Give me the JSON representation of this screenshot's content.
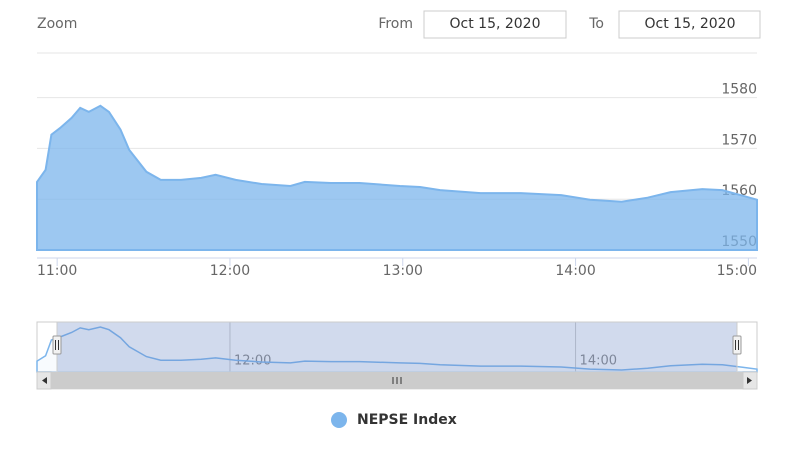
{
  "chart_data": {
    "type": "area",
    "zoom_label": "Zoom",
    "from_label": "From",
    "from_date": "Oct 15, 2020",
    "to_label": "To",
    "to_date": "Oct 15, 2020",
    "x": [
      "10:53",
      "10:56",
      "10:58",
      "11:01",
      "11:05",
      "11:08",
      "11:11",
      "11:15",
      "11:18",
      "11:22",
      "11:25",
      "11:31",
      "11:36",
      "11:43",
      "11:50",
      "11:55",
      "12:02",
      "12:11",
      "12:21",
      "12:26",
      "12:35",
      "12:45",
      "12:59",
      "13:06",
      "13:13",
      "13:27",
      "13:41",
      "13:55",
      "14:05",
      "14:16",
      "14:25",
      "14:33",
      "14:44",
      "14:51",
      "14:58",
      "15:03"
    ],
    "series": [
      {
        "name": "NEPSE Index",
        "color": "#7cb5ec",
        "values": [
          1563.4,
          1565.8,
          1572.7,
          1574,
          1576,
          1578,
          1577.2,
          1578.4,
          1577.2,
          1573.7,
          1569.7,
          1565.4,
          1563.8,
          1563.8,
          1564.2,
          1564.8,
          1563.8,
          1563,
          1562.6,
          1563.4,
          1563.2,
          1563.2,
          1562.6,
          1562.4,
          1561.8,
          1561.2,
          1561.2,
          1560.8,
          1559.9,
          1559.5,
          1560.3,
          1561.4,
          1562,
          1561.8,
          1560.7,
          1559.9
        ]
      }
    ],
    "xlim": [
      "10:53",
      "15:03"
    ],
    "xticks": [
      "11:00",
      "12:00",
      "13:00",
      "14:00",
      "15:00"
    ],
    "ylim": [
      1550,
      1588
    ],
    "yticks": [
      1550,
      1560,
      1570,
      1580
    ],
    "navigator_xticks": [
      "12:00",
      "14:00"
    ],
    "grid": true
  }
}
